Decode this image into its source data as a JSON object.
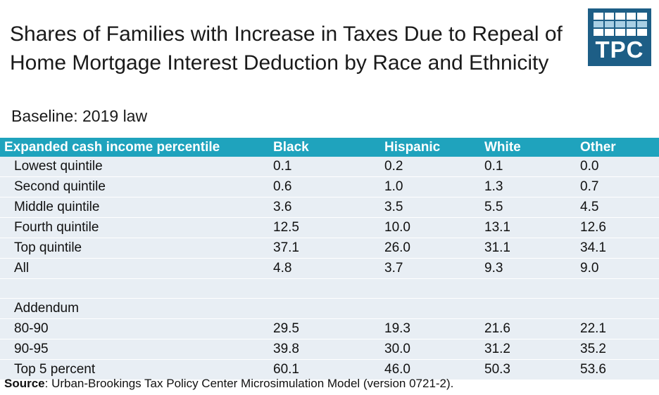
{
  "title": "Shares of Families with Increase in Taxes Due to Repeal of Home Mortgage Interest Deduction by Race and Ethnicity",
  "subtitle": "Baseline: 2019 law",
  "logo": {
    "text": "TPC"
  },
  "colors": {
    "header_bg": "#1fa3bd",
    "row_bg": "#e8eef4",
    "logo_bg": "#1d5e86"
  },
  "chart_data": {
    "type": "table",
    "columns": [
      "Expanded cash income percentile",
      "Black",
      "Hispanic",
      "White",
      "Other"
    ],
    "rows": [
      [
        "Lowest quintile",
        "0.1",
        "0.2",
        "0.1",
        "0.0"
      ],
      [
        "Second quintile",
        "0.6",
        "1.0",
        "1.3",
        "0.7"
      ],
      [
        "Middle quintile",
        "3.6",
        "3.5",
        "5.5",
        "4.5"
      ],
      [
        "Fourth quintile",
        "12.5",
        "10.0",
        "13.1",
        "12.6"
      ],
      [
        "Top quintile",
        "37.1",
        "26.0",
        "31.1",
        "34.1"
      ],
      [
        "All",
        "4.8",
        "3.7",
        "9.3",
        "9.0"
      ],
      [
        "",
        "",
        "",
        "",
        ""
      ],
      [
        "Addendum",
        "",
        "",
        "",
        ""
      ],
      [
        "80-90",
        "29.5",
        "19.3",
        "21.6",
        "22.1"
      ],
      [
        "90-95",
        "39.8",
        "30.0",
        "31.2",
        "35.2"
      ],
      [
        "Top 5 percent",
        "60.1",
        "46.0",
        "50.3",
        "53.6"
      ]
    ]
  },
  "source": {
    "label": "Source",
    "text": ": Urban-Brookings Tax Policy Center Microsimulation Model (version 0721-2)."
  }
}
